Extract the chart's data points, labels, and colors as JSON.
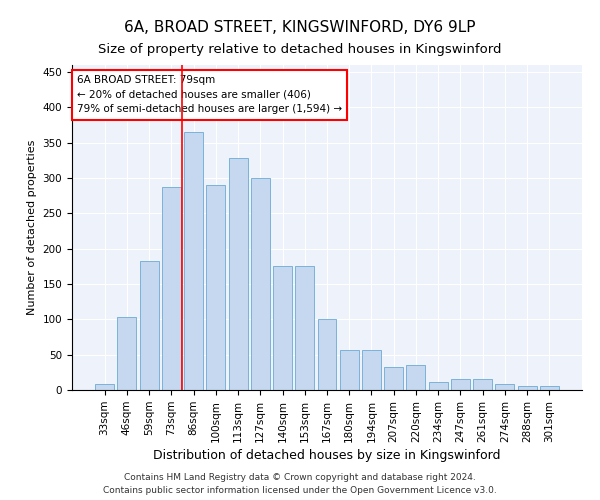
{
  "title1": "6A, BROAD STREET, KINGSWINFORD, DY6 9LP",
  "title2": "Size of property relative to detached houses in Kingswinford",
  "xlabel": "Distribution of detached houses by size in Kingswinford",
  "ylabel": "Number of detached properties",
  "categories": [
    "33sqm",
    "46sqm",
    "59sqm",
    "73sqm",
    "86sqm",
    "100sqm",
    "113sqm",
    "127sqm",
    "140sqm",
    "153sqm",
    "167sqm",
    "180sqm",
    "194sqm",
    "207sqm",
    "220sqm",
    "234sqm",
    "247sqm",
    "261sqm",
    "274sqm",
    "288sqm",
    "301sqm"
  ],
  "values": [
    8,
    103,
    183,
    288,
    365,
    290,
    328,
    300,
    176,
    176,
    100,
    57,
    57,
    32,
    35,
    11,
    15,
    15,
    8,
    5,
    5
  ],
  "bar_color": "#c5d8f0",
  "bar_edge_color": "#6aaad4",
  "vline_x": 3.5,
  "vline_color": "red",
  "annotation_line1": "6A BROAD STREET: 79sqm",
  "annotation_line2": "← 20% of detached houses are smaller (406)",
  "annotation_line3": "79% of semi-detached houses are larger (1,594) →",
  "annotation_box_color": "white",
  "annotation_box_edge": "red",
  "ylim": [
    0,
    460
  ],
  "yticks": [
    0,
    50,
    100,
    150,
    200,
    250,
    300,
    350,
    400,
    450
  ],
  "footer1": "Contains HM Land Registry data © Crown copyright and database right 2024.",
  "footer2": "Contains public sector information licensed under the Open Government Licence v3.0.",
  "background_color": "#eef3fb",
  "title1_fontsize": 11,
  "title2_fontsize": 9.5,
  "xlabel_fontsize": 9,
  "ylabel_fontsize": 8,
  "tick_fontsize": 7.5,
  "annotation_fontsize": 7.5,
  "footer_fontsize": 6.5
}
